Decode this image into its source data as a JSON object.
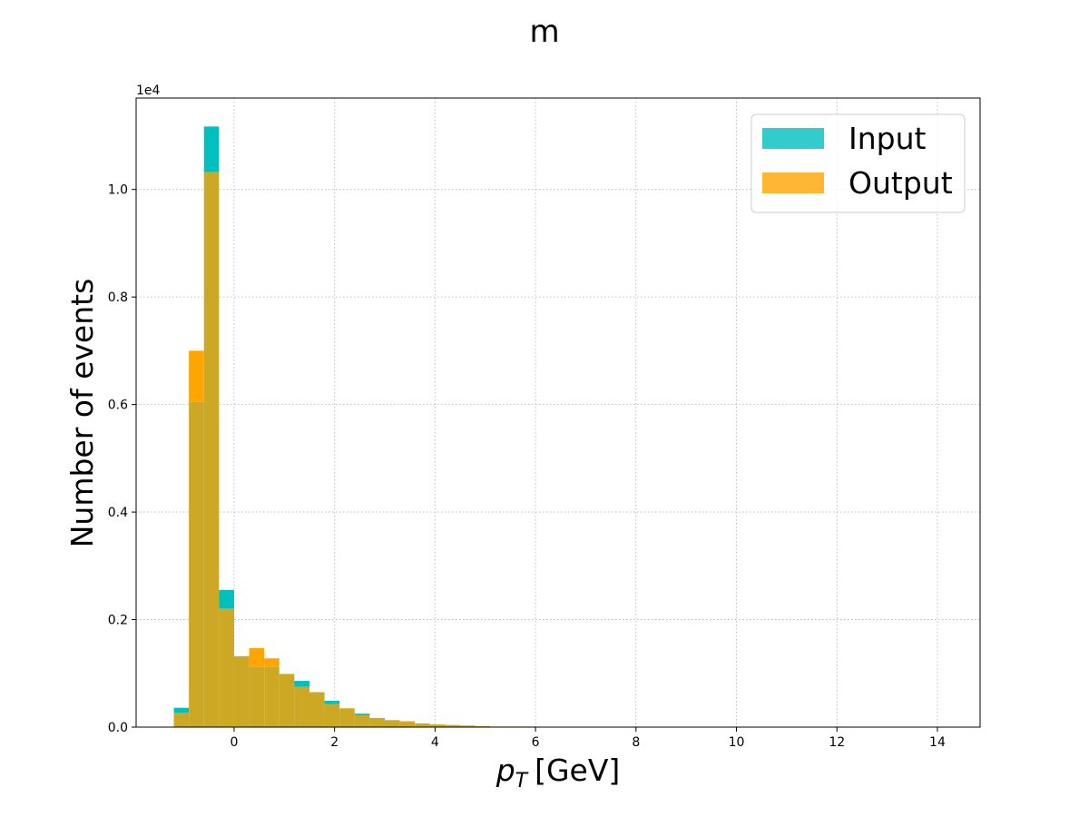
{
  "chart_data": {
    "type": "bar",
    "title": "m",
    "xlabel": "p_T [GeV]",
    "xlabel_main": "p",
    "xlabel_sub": "T",
    "xlabel_unit": "[GeV]",
    "ylabel": "Number of events",
    "y_offset_text": "1e4",
    "xlim": [
      -1.95,
      14.85
    ],
    "ylim": [
      0,
      1.17
    ],
    "x_ticks": [
      0,
      2,
      4,
      6,
      8,
      10,
      12,
      14
    ],
    "x_tick_labels": [
      "0",
      "2",
      "4",
      "6",
      "8",
      "10",
      "12",
      "14"
    ],
    "y_ticks": [
      0.0,
      0.2,
      0.4,
      0.6,
      0.8,
      1.0
    ],
    "y_tick_labels": [
      "0.0",
      "0.2",
      "0.4",
      "0.6",
      "0.8",
      "1.0"
    ],
    "grid": true,
    "legend_position": "top-right",
    "bin_edges": [
      -1.2,
      -0.9,
      -0.6,
      -0.3,
      0.0,
      0.3,
      0.6,
      0.9,
      1.2,
      1.5,
      1.8,
      2.1,
      2.4,
      2.7,
      3.0,
      3.3,
      3.6,
      3.9,
      4.2,
      4.5,
      4.8,
      5.1,
      5.4,
      5.7,
      6.0
    ],
    "series": [
      {
        "name": "Input",
        "color": "#00bfbf",
        "values": [
          0.036,
          0.605,
          1.117,
          0.255,
          0.132,
          0.112,
          0.112,
          0.099,
          0.086,
          0.065,
          0.049,
          0.035,
          0.025,
          0.017,
          0.013,
          0.01,
          0.007,
          0.005,
          0.004,
          0.003,
          0.002,
          0.001,
          0.001,
          0.001
        ]
      },
      {
        "name": "Output",
        "color": "#ffa500",
        "values": [
          0.027,
          0.7,
          1.032,
          0.22,
          0.132,
          0.147,
          0.128,
          0.099,
          0.075,
          0.065,
          0.043,
          0.035,
          0.022,
          0.017,
          0.013,
          0.011,
          0.007,
          0.005,
          0.004,
          0.003,
          0.002,
          0.001,
          0.001,
          0.001
        ]
      }
    ],
    "overlap_color": "#cca825"
  }
}
